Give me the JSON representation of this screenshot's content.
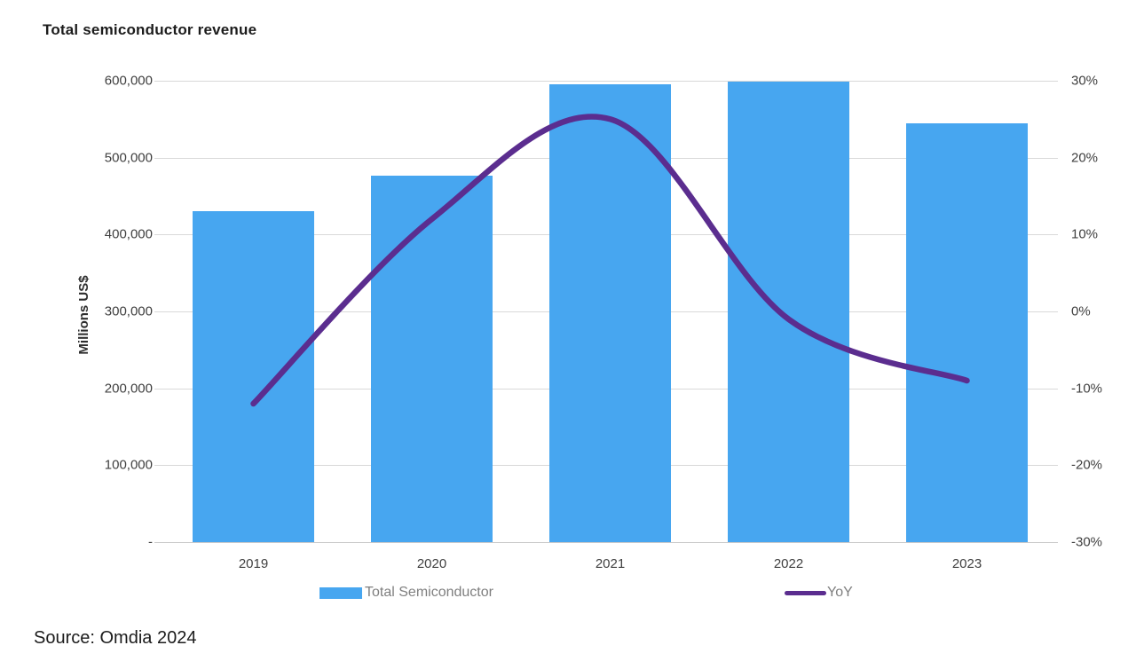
{
  "source": "Source: Omdia 2024",
  "chart_data": {
    "type": "combo",
    "title": "Total semiconductor revenue",
    "categories": [
      "2019",
      "2020",
      "2021",
      "2022",
      "2023"
    ],
    "series": [
      {
        "name": "Total Semiconductor",
        "type": "bar",
        "axis": "left",
        "values": [
          430000,
          477000,
          595000,
          599000,
          545000
        ],
        "color": "#47a6f0"
      },
      {
        "name": "YoY",
        "type": "line",
        "axis": "right",
        "values": [
          -12,
          12,
          25,
          -1,
          -9
        ],
        "color": "#5b2d8f"
      }
    ],
    "left_axis": {
      "title": "Millions US$",
      "ylim": [
        0,
        600000
      ],
      "ticks_top_to_bottom": [
        "600,000",
        "500,000",
        "400,000",
        "300,000",
        "200,000",
        "100,000",
        "-"
      ]
    },
    "right_axis": {
      "ylim": [
        -30,
        30
      ],
      "ticks_top_to_bottom": [
        "30%",
        "20%",
        "10%",
        "0%",
        "-10%",
        "-20%",
        "-30%"
      ]
    },
    "grid": true,
    "gridline_color": "#d9d9d9",
    "legend_position": "bottom"
  }
}
